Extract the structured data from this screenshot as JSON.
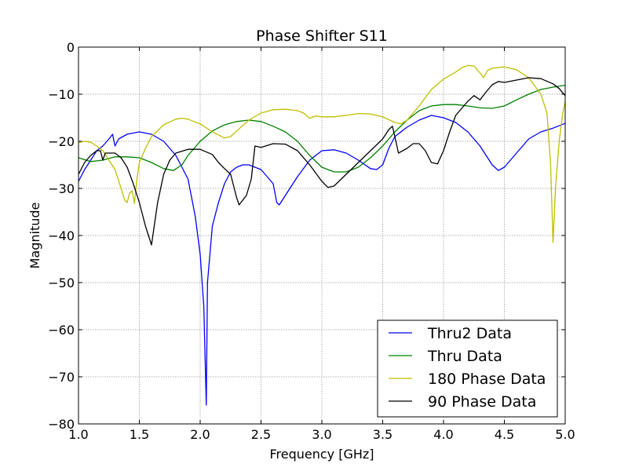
{
  "chart_data": {
    "type": "line",
    "title": "Phase Shifter S11",
    "xlabel": "Frequency [GHz]",
    "ylabel": "Magnitude",
    "xlim": [
      1.0,
      5.0
    ],
    "ylim": [
      -80,
      0
    ],
    "x_ticks": [
      "1.0",
      "1.5",
      "2.0",
      "2.5",
      "3.0",
      "3.5",
      "4.0",
      "4.5",
      "5.0"
    ],
    "y_ticks": [
      "0",
      "−10",
      "−20",
      "−30",
      "−40",
      "−50",
      "−60",
      "−70",
      "−80"
    ],
    "grid": true,
    "legend_position": "bottom-right",
    "series": [
      {
        "name": "Thru2 Data",
        "color": "#0000ff",
        "points": [
          [
            1.0,
            -28.5
          ],
          [
            1.05,
            -26
          ],
          [
            1.1,
            -24
          ],
          [
            1.15,
            -22
          ],
          [
            1.2,
            -21
          ],
          [
            1.25,
            -19.5
          ],
          [
            1.28,
            -18.5
          ],
          [
            1.3,
            -21
          ],
          [
            1.33,
            -19.5
          ],
          [
            1.4,
            -18.5
          ],
          [
            1.5,
            -18
          ],
          [
            1.6,
            -18.5
          ],
          [
            1.7,
            -20
          ],
          [
            1.8,
            -23
          ],
          [
            1.9,
            -28
          ],
          [
            1.96,
            -36
          ],
          [
            2.0,
            -44
          ],
          [
            2.03,
            -55
          ],
          [
            2.05,
            -76
          ],
          [
            2.06,
            -50
          ],
          [
            2.1,
            -38
          ],
          [
            2.15,
            -33
          ],
          [
            2.2,
            -29
          ],
          [
            2.25,
            -26.5
          ],
          [
            2.3,
            -25.5
          ],
          [
            2.35,
            -25
          ],
          [
            2.4,
            -25
          ],
          [
            2.5,
            -26
          ],
          [
            2.6,
            -29
          ],
          [
            2.63,
            -33
          ],
          [
            2.65,
            -33.5
          ],
          [
            2.7,
            -31.5
          ],
          [
            2.8,
            -27.5
          ],
          [
            2.9,
            -24
          ],
          [
            3.0,
            -22
          ],
          [
            3.1,
            -21.8
          ],
          [
            3.2,
            -22.5
          ],
          [
            3.3,
            -24
          ],
          [
            3.4,
            -25.8
          ],
          [
            3.45,
            -26
          ],
          [
            3.5,
            -25
          ],
          [
            3.55,
            -21.5
          ],
          [
            3.6,
            -19
          ],
          [
            3.7,
            -17
          ],
          [
            3.8,
            -15.5
          ],
          [
            3.9,
            -14.5
          ],
          [
            4.0,
            -15
          ],
          [
            4.1,
            -16
          ],
          [
            4.2,
            -18
          ],
          [
            4.3,
            -21
          ],
          [
            4.4,
            -25
          ],
          [
            4.45,
            -26.2
          ],
          [
            4.5,
            -25.5
          ],
          [
            4.6,
            -22.5
          ],
          [
            4.7,
            -19.5
          ],
          [
            4.8,
            -18
          ],
          [
            4.9,
            -17.2
          ],
          [
            5.0,
            -16.2
          ]
        ]
      },
      {
        "name": "Thru Data",
        "color": "#008000",
        "points": [
          [
            1.0,
            -23.5
          ],
          [
            1.1,
            -24.3
          ],
          [
            1.2,
            -24
          ],
          [
            1.3,
            -23.3
          ],
          [
            1.4,
            -23.3
          ],
          [
            1.5,
            -23.5
          ],
          [
            1.6,
            -24.5
          ],
          [
            1.7,
            -25.8
          ],
          [
            1.78,
            -26.2
          ],
          [
            1.85,
            -25
          ],
          [
            1.9,
            -23
          ],
          [
            2.0,
            -20
          ],
          [
            2.1,
            -17.8
          ],
          [
            2.2,
            -16.5
          ],
          [
            2.3,
            -15.8
          ],
          [
            2.4,
            -15.5
          ],
          [
            2.5,
            -15.8
          ],
          [
            2.6,
            -16.8
          ],
          [
            2.7,
            -18
          ],
          [
            2.8,
            -20
          ],
          [
            2.9,
            -23
          ],
          [
            3.0,
            -25.5
          ],
          [
            3.1,
            -26.5
          ],
          [
            3.2,
            -26.5
          ],
          [
            3.3,
            -25.5
          ],
          [
            3.4,
            -23.5
          ],
          [
            3.5,
            -21
          ],
          [
            3.6,
            -18
          ],
          [
            3.7,
            -15.5
          ],
          [
            3.8,
            -13.5
          ],
          [
            3.9,
            -12.5
          ],
          [
            4.0,
            -12.2
          ],
          [
            4.1,
            -12.2
          ],
          [
            4.2,
            -12.5
          ],
          [
            4.3,
            -12.9
          ],
          [
            4.4,
            -13
          ],
          [
            4.5,
            -12.5
          ],
          [
            4.6,
            -11.2
          ],
          [
            4.7,
            -10
          ],
          [
            4.8,
            -9
          ],
          [
            4.9,
            -8.5
          ],
          [
            5.0,
            -8.1
          ]
        ]
      },
      {
        "name": "180 Phase Data",
        "color": "#bfbf00",
        "points": [
          [
            1.0,
            -20.3
          ],
          [
            1.05,
            -20
          ],
          [
            1.1,
            -20.2
          ],
          [
            1.15,
            -21
          ],
          [
            1.2,
            -22
          ],
          [
            1.25,
            -24
          ],
          [
            1.3,
            -26
          ],
          [
            1.35,
            -30
          ],
          [
            1.38,
            -32.5
          ],
          [
            1.4,
            -33
          ],
          [
            1.42,
            -31
          ],
          [
            1.44,
            -30.5
          ],
          [
            1.46,
            -33.2
          ],
          [
            1.48,
            -28
          ],
          [
            1.5,
            -24.5
          ],
          [
            1.55,
            -21.5
          ],
          [
            1.6,
            -19
          ],
          [
            1.7,
            -16.5
          ],
          [
            1.8,
            -15.3
          ],
          [
            1.85,
            -15.1
          ],
          [
            1.9,
            -15.3
          ],
          [
            2.0,
            -16.3
          ],
          [
            2.1,
            -18
          ],
          [
            2.2,
            -19.3
          ],
          [
            2.25,
            -19
          ],
          [
            2.3,
            -17.8
          ],
          [
            2.4,
            -15.5
          ],
          [
            2.5,
            -14
          ],
          [
            2.6,
            -13.3
          ],
          [
            2.7,
            -13.2
          ],
          [
            2.8,
            -13.5
          ],
          [
            2.85,
            -14
          ],
          [
            2.9,
            -15.1
          ],
          [
            2.95,
            -14.6
          ],
          [
            3.0,
            -14.8
          ],
          [
            3.1,
            -14.8
          ],
          [
            3.2,
            -14.5
          ],
          [
            3.3,
            -14.1
          ],
          [
            3.4,
            -14.2
          ],
          [
            3.5,
            -14.8
          ],
          [
            3.6,
            -16
          ],
          [
            3.65,
            -16.3
          ],
          [
            3.7,
            -15.5
          ],
          [
            3.8,
            -12.5
          ],
          [
            3.9,
            -9
          ],
          [
            4.0,
            -6.8
          ],
          [
            4.1,
            -5.3
          ],
          [
            4.15,
            -4.4
          ],
          [
            4.2,
            -3.9
          ],
          [
            4.25,
            -4
          ],
          [
            4.3,
            -5.5
          ],
          [
            4.33,
            -6.5
          ],
          [
            4.36,
            -5
          ],
          [
            4.4,
            -4.5
          ],
          [
            4.5,
            -4.2
          ],
          [
            4.6,
            -4.8
          ],
          [
            4.7,
            -6.5
          ],
          [
            4.8,
            -10
          ],
          [
            4.85,
            -14
          ],
          [
            4.88,
            -25
          ],
          [
            4.9,
            -41.5
          ],
          [
            4.92,
            -30
          ],
          [
            4.95,
            -20
          ],
          [
            4.98,
            -14
          ],
          [
            5.0,
            -11.5
          ]
        ]
      },
      {
        "name": "90 Phase Data",
        "color": "#000000",
        "points": [
          [
            1.0,
            -27
          ],
          [
            1.05,
            -24.5
          ],
          [
            1.1,
            -23
          ],
          [
            1.15,
            -22
          ],
          [
            1.18,
            -22
          ],
          [
            1.2,
            -24
          ],
          [
            1.22,
            -22.5
          ],
          [
            1.3,
            -22.5
          ],
          [
            1.35,
            -23.5
          ],
          [
            1.4,
            -25.5
          ],
          [
            1.45,
            -29
          ],
          [
            1.5,
            -33
          ],
          [
            1.55,
            -38
          ],
          [
            1.6,
            -42
          ],
          [
            1.65,
            -33
          ],
          [
            1.7,
            -27
          ],
          [
            1.75,
            -24
          ],
          [
            1.8,
            -22.5
          ],
          [
            1.9,
            -21.7
          ],
          [
            2.0,
            -21.7
          ],
          [
            2.1,
            -22.8
          ],
          [
            2.15,
            -24.5
          ],
          [
            2.2,
            -25.8
          ],
          [
            2.25,
            -27
          ],
          [
            2.3,
            -32
          ],
          [
            2.32,
            -33.5
          ],
          [
            2.38,
            -31.5
          ],
          [
            2.42,
            -28
          ],
          [
            2.45,
            -21
          ],
          [
            2.5,
            -21.3
          ],
          [
            2.6,
            -20.5
          ],
          [
            2.7,
            -20.6
          ],
          [
            2.8,
            -22
          ],
          [
            2.9,
            -25
          ],
          [
            3.0,
            -28.5
          ],
          [
            3.05,
            -29.8
          ],
          [
            3.1,
            -29.5
          ],
          [
            3.2,
            -27
          ],
          [
            3.3,
            -24.5
          ],
          [
            3.4,
            -22
          ],
          [
            3.5,
            -19.5
          ],
          [
            3.55,
            -17.5
          ],
          [
            3.58,
            -16.8
          ],
          [
            3.6,
            -19
          ],
          [
            3.63,
            -22.5
          ],
          [
            3.7,
            -21.5
          ],
          [
            3.75,
            -20.5
          ],
          [
            3.8,
            -20.5
          ],
          [
            3.85,
            -22
          ],
          [
            3.9,
            -24.5
          ],
          [
            3.95,
            -24.8
          ],
          [
            4.0,
            -22
          ],
          [
            4.05,
            -18
          ],
          [
            4.1,
            -14.5
          ],
          [
            4.2,
            -11.5
          ],
          [
            4.25,
            -10.3
          ],
          [
            4.3,
            -11.2
          ],
          [
            4.35,
            -9.5
          ],
          [
            4.4,
            -8
          ],
          [
            4.45,
            -7.3
          ],
          [
            4.5,
            -7.5
          ],
          [
            4.6,
            -7
          ],
          [
            4.7,
            -6.5
          ],
          [
            4.8,
            -6.7
          ],
          [
            4.9,
            -7.8
          ],
          [
            4.95,
            -8.8
          ],
          [
            5.0,
            -10.3
          ]
        ]
      }
    ]
  }
}
